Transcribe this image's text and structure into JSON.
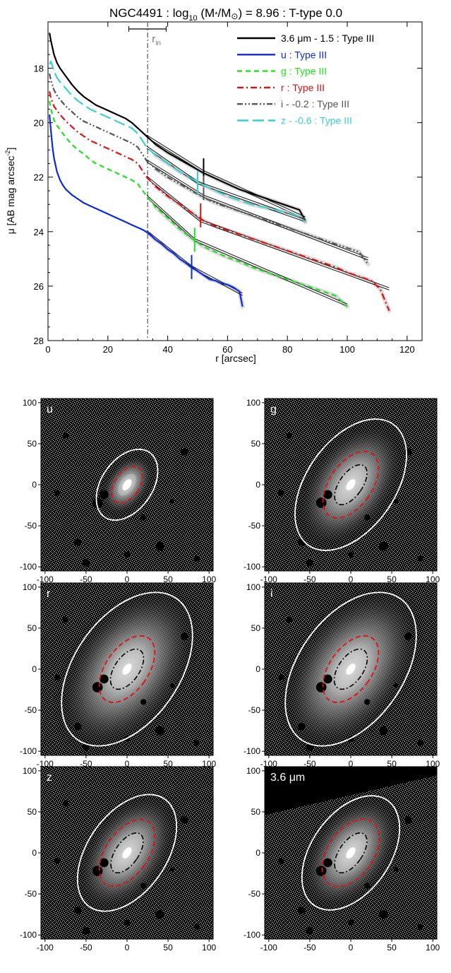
{
  "colors": {
    "black": "#000000",
    "u": "#0b2bd8",
    "g": "#1fe01f",
    "r": "#e01010",
    "i": "#555555",
    "z": "#3ccfcf",
    "rin": "#777777",
    "mark_36": "#000000",
    "mark_u": "#0b2bd8",
    "mark_g": "#1fe01f",
    "mark_r": "#e01010",
    "mark_i": "#555555",
    "mark_z": "#3ccfcf"
  },
  "chart_data": [
    {
      "type": "line",
      "title": "NGC4491 : log10 (M*/M⊙) = 8.96 : T-type 0.0",
      "title_parts": {
        "prefix": "NGC4491 : log",
        "log_base": "10",
        "mid": " (M",
        "star": "*",
        "slash": "/M",
        "sun": "⊙",
        "suffix": ") = 8.96 : T-type 0.0"
      },
      "xlabel": "r [arcsec]",
      "ylabel_parts": {
        "main": "μ [AB mag arcsec",
        "exp": "-2",
        "close": "]"
      },
      "xlim": [
        0,
        125
      ],
      "ylim": [
        28,
        16.3
      ],
      "y_inverted": true,
      "xticks": [
        0,
        20,
        40,
        60,
        80,
        100,
        120
      ],
      "yticks": [
        18,
        20,
        22,
        24,
        26,
        28
      ],
      "legend_position": "top-right",
      "annotation": {
        "label": "r",
        "sub": "in",
        "x": 33.3,
        "err_low": 27.0,
        "err_high": 39.5
      },
      "series": [
        {
          "key": "36",
          "name": "3.6 μm - 1.5 : Type III",
          "style": "solid",
          "color_key": "black",
          "x": [
            0.5,
            1,
            2,
            3,
            4,
            6,
            8,
            10,
            12,
            14,
            16,
            18,
            20,
            22,
            24,
            26,
            28,
            30,
            33,
            36,
            40,
            44,
            48,
            52,
            56,
            60,
            64,
            68,
            72,
            76,
            80,
            84,
            86
          ],
          "y": [
            16.7,
            17.0,
            17.5,
            17.8,
            18.0,
            18.3,
            18.6,
            18.85,
            19.05,
            19.2,
            19.35,
            19.45,
            19.55,
            19.65,
            19.75,
            19.85,
            20.0,
            20.2,
            20.5,
            20.8,
            21.1,
            21.35,
            21.6,
            21.85,
            22.05,
            22.25,
            22.45,
            22.6,
            22.75,
            22.9,
            23.05,
            23.2,
            23.6
          ],
          "fits": [
            {
              "x": [
                33,
                52
              ],
              "y": [
                20.5,
                21.8
              ]
            },
            {
              "x": [
                52,
                86
              ],
              "y": [
                21.8,
                23.5
              ]
            }
          ],
          "break_x": 52,
          "break_y": 21.75
        },
        {
          "key": "u",
          "name": "u : Type III",
          "style": "solid",
          "color_key": "u",
          "x": [
            0.5,
            1,
            1.5,
            2,
            3,
            4,
            5,
            6,
            8,
            10,
            12,
            14,
            16,
            18,
            20,
            22,
            24,
            26,
            28,
            30,
            32,
            34,
            36,
            38,
            40,
            42,
            44,
            46,
            48,
            50,
            52,
            54,
            56,
            58,
            60,
            62,
            64,
            65
          ],
          "y": [
            19.7,
            20.3,
            20.9,
            21.3,
            21.8,
            22.1,
            22.3,
            22.45,
            22.65,
            22.8,
            22.95,
            23.05,
            23.15,
            23.25,
            23.35,
            23.45,
            23.55,
            23.65,
            23.75,
            23.85,
            23.95,
            24.1,
            24.3,
            24.45,
            24.65,
            24.8,
            25.0,
            25.15,
            25.3,
            25.45,
            25.6,
            25.75,
            25.8,
            25.9,
            25.95,
            26.05,
            26.2,
            26.75
          ],
          "fits": [
            {
              "x": [
                33,
                48
              ],
              "y": [
                24.0,
                25.3
              ]
            },
            {
              "x": [
                48,
                65
              ],
              "y": [
                25.3,
                26.3
              ]
            }
          ],
          "break_x": 48,
          "break_y": 25.3
        },
        {
          "key": "g",
          "name": "g : Type III",
          "style": "dashed",
          "color_key": "g",
          "x": [
            0.5,
            1,
            2,
            3,
            4,
            6,
            8,
            10,
            12,
            14,
            16,
            18,
            20,
            22,
            24,
            26,
            28,
            30,
            33,
            36,
            40,
            44,
            48,
            52,
            56,
            60,
            64,
            68,
            72,
            76,
            80,
            84,
            88,
            92,
            96,
            98,
            100
          ],
          "y": [
            19.2,
            19.5,
            19.9,
            20.1,
            20.25,
            20.55,
            20.8,
            21.0,
            21.15,
            21.35,
            21.5,
            21.6,
            21.7,
            21.8,
            21.9,
            22.0,
            22.1,
            22.25,
            22.7,
            23.1,
            23.5,
            23.9,
            24.25,
            24.55,
            24.75,
            24.95,
            25.1,
            25.3,
            25.45,
            25.6,
            25.75,
            25.9,
            26.05,
            26.2,
            26.35,
            26.55,
            26.75
          ],
          "fits": [
            {
              "x": [
                33,
                49
              ],
              "y": [
                22.7,
                24.3
              ]
            },
            {
              "x": [
                49,
                100
              ],
              "y": [
                24.3,
                26.7
              ]
            }
          ],
          "break_x": 49,
          "break_y": 24.3
        },
        {
          "key": "r",
          "name": "r : Type III",
          "style": "dashdot",
          "color_key": "r",
          "x": [
            0.5,
            1,
            2,
            3,
            4,
            6,
            8,
            10,
            12,
            14,
            16,
            18,
            20,
            22,
            24,
            26,
            28,
            30,
            33,
            36,
            40,
            44,
            48,
            52,
            56,
            60,
            64,
            68,
            72,
            76,
            80,
            84,
            88,
            92,
            96,
            100,
            104,
            108,
            111,
            114
          ],
          "y": [
            18.85,
            19.1,
            19.4,
            19.55,
            19.7,
            19.95,
            20.15,
            20.35,
            20.5,
            20.65,
            20.75,
            20.85,
            20.95,
            21.05,
            21.15,
            21.25,
            21.35,
            21.5,
            22.0,
            22.35,
            22.7,
            23.0,
            23.3,
            23.6,
            23.8,
            23.95,
            24.1,
            24.25,
            24.4,
            24.55,
            24.7,
            24.85,
            25.0,
            25.15,
            25.3,
            25.5,
            25.65,
            25.8,
            26.1,
            26.9
          ],
          "fits": [
            {
              "x": [
                33,
                51
              ],
              "y": [
                22.0,
                23.6
              ]
            },
            {
              "x": [
                51,
                114
              ],
              "y": [
                23.6,
                26.1
              ]
            }
          ],
          "break_x": 51,
          "break_y": 23.4
        },
        {
          "key": "i",
          "name": "i - -0.2 : Type III",
          "style": "dashdotdot",
          "color_key": "i",
          "x": [
            0.5,
            1,
            2,
            3,
            4,
            6,
            8,
            10,
            12,
            14,
            16,
            18,
            20,
            22,
            24,
            26,
            28,
            30,
            33,
            36,
            40,
            44,
            48,
            52,
            56,
            60,
            64,
            68,
            72,
            76,
            80,
            84,
            88,
            92,
            96,
            100,
            104,
            107
          ],
          "y": [
            18.2,
            18.45,
            18.8,
            19.0,
            19.15,
            19.4,
            19.6,
            19.8,
            19.95,
            20.05,
            20.15,
            20.25,
            20.35,
            20.45,
            20.55,
            20.65,
            20.75,
            20.9,
            21.4,
            21.7,
            22.0,
            22.25,
            22.5,
            22.75,
            22.95,
            23.1,
            23.25,
            23.4,
            23.55,
            23.7,
            23.85,
            24.0,
            24.15,
            24.3,
            24.45,
            24.6,
            24.75,
            25.2
          ],
          "fits": [
            {
              "x": [
                33,
                52
              ],
              "y": [
                21.4,
                22.7
              ]
            },
            {
              "x": [
                52,
                107
              ],
              "y": [
                22.7,
                25.0
              ]
            }
          ],
          "break_x": 52,
          "break_y": 22.4
        },
        {
          "key": "z",
          "name": "z - -0.6 : Type III",
          "style": "longdash",
          "color_key": "z",
          "x": [
            0.5,
            1,
            2,
            3,
            4,
            6,
            8,
            10,
            12,
            14,
            16,
            18,
            20,
            22,
            24,
            26,
            28,
            30,
            33,
            36,
            40,
            44,
            48,
            52,
            56,
            60,
            64,
            68,
            72,
            76,
            80,
            84,
            86
          ],
          "y": [
            17.85,
            17.75,
            18.1,
            18.35,
            18.5,
            18.75,
            19.0,
            19.2,
            19.35,
            19.5,
            19.6,
            19.7,
            19.8,
            19.9,
            20.0,
            20.1,
            20.2,
            20.4,
            20.9,
            21.2,
            21.5,
            21.8,
            22.05,
            22.3,
            22.5,
            22.7,
            22.85,
            23.0,
            23.1,
            23.2,
            23.3,
            23.45,
            23.65
          ],
          "fits": [
            {
              "x": [
                33,
                50
              ],
              "y": [
                20.9,
                22.2
              ]
            },
            {
              "x": [
                50,
                86
              ],
              "y": [
                22.2,
                23.6
              ]
            }
          ],
          "break_x": 50,
          "break_y": 22.2
        }
      ]
    },
    {
      "type": "image",
      "panels": [
        {
          "key": "u",
          "label": "u",
          "label_sub": "",
          "xticks": [
            -100,
            -50,
            0,
            50,
            100
          ],
          "yticks": [
            100,
            50,
            0,
            -50,
            -100
          ],
          "outer_a": 48,
          "outer_b": 31,
          "mid_a": 25,
          "mid_b": 15,
          "inner_a": 0,
          "inner_b": 0,
          "halo": 0.35,
          "tilt": 35
        },
        {
          "key": "g",
          "label": "g",
          "label_sub": "",
          "xticks": [
            -100,
            -50,
            0,
            50,
            100
          ],
          "yticks": [
            100,
            50,
            0,
            -50,
            -100
          ],
          "outer_a": 90,
          "outer_b": 54,
          "mid_a": 46,
          "mid_b": 26,
          "inner_a": 28,
          "inner_b": 14,
          "halo": 0.45,
          "tilt": 35
        },
        {
          "key": "r",
          "label": "r",
          "label_sub": "",
          "xticks": [
            -100,
            -50,
            0,
            50,
            100
          ],
          "yticks": [
            100,
            50,
            0,
            -50,
            -100
          ],
          "outer_a": 105,
          "outer_b": 64,
          "mid_a": 46,
          "mid_b": 26,
          "inner_a": 28,
          "inner_b": 15,
          "halo": 0.55,
          "tilt": 35
        },
        {
          "key": "i",
          "label": "i",
          "label_sub": "",
          "xticks": [
            -100,
            -50,
            0,
            50,
            100
          ],
          "yticks": [
            100,
            50,
            0,
            -50,
            -100
          ],
          "outer_a": 105,
          "outer_b": 64,
          "mid_a": 46,
          "mid_b": 26,
          "inner_a": 28,
          "inner_b": 15,
          "halo": 0.55,
          "tilt": 35
        },
        {
          "key": "z",
          "label": "z",
          "label_sub": "",
          "xticks": [
            -100,
            -50,
            0,
            50,
            100
          ],
          "yticks": [
            100,
            50,
            0,
            -50,
            -100
          ],
          "outer_a": 80,
          "outer_b": 48,
          "mid_a": 46,
          "mid_b": 26,
          "inner_a": 28,
          "inner_b": 14,
          "halo": 0.5,
          "tilt": 35
        },
        {
          "key": "36",
          "label": "3.6 μm",
          "label_sub": "",
          "xticks": [
            -100,
            -50,
            0,
            50,
            100
          ],
          "yticks": [
            100,
            50,
            0,
            -50,
            -100
          ],
          "outer_a": 78,
          "outer_b": 48,
          "mid_a": 46,
          "mid_b": 28,
          "inner_a": 28,
          "inner_b": 14,
          "halo": 0.5,
          "tilt": 35
        }
      ]
    }
  ]
}
